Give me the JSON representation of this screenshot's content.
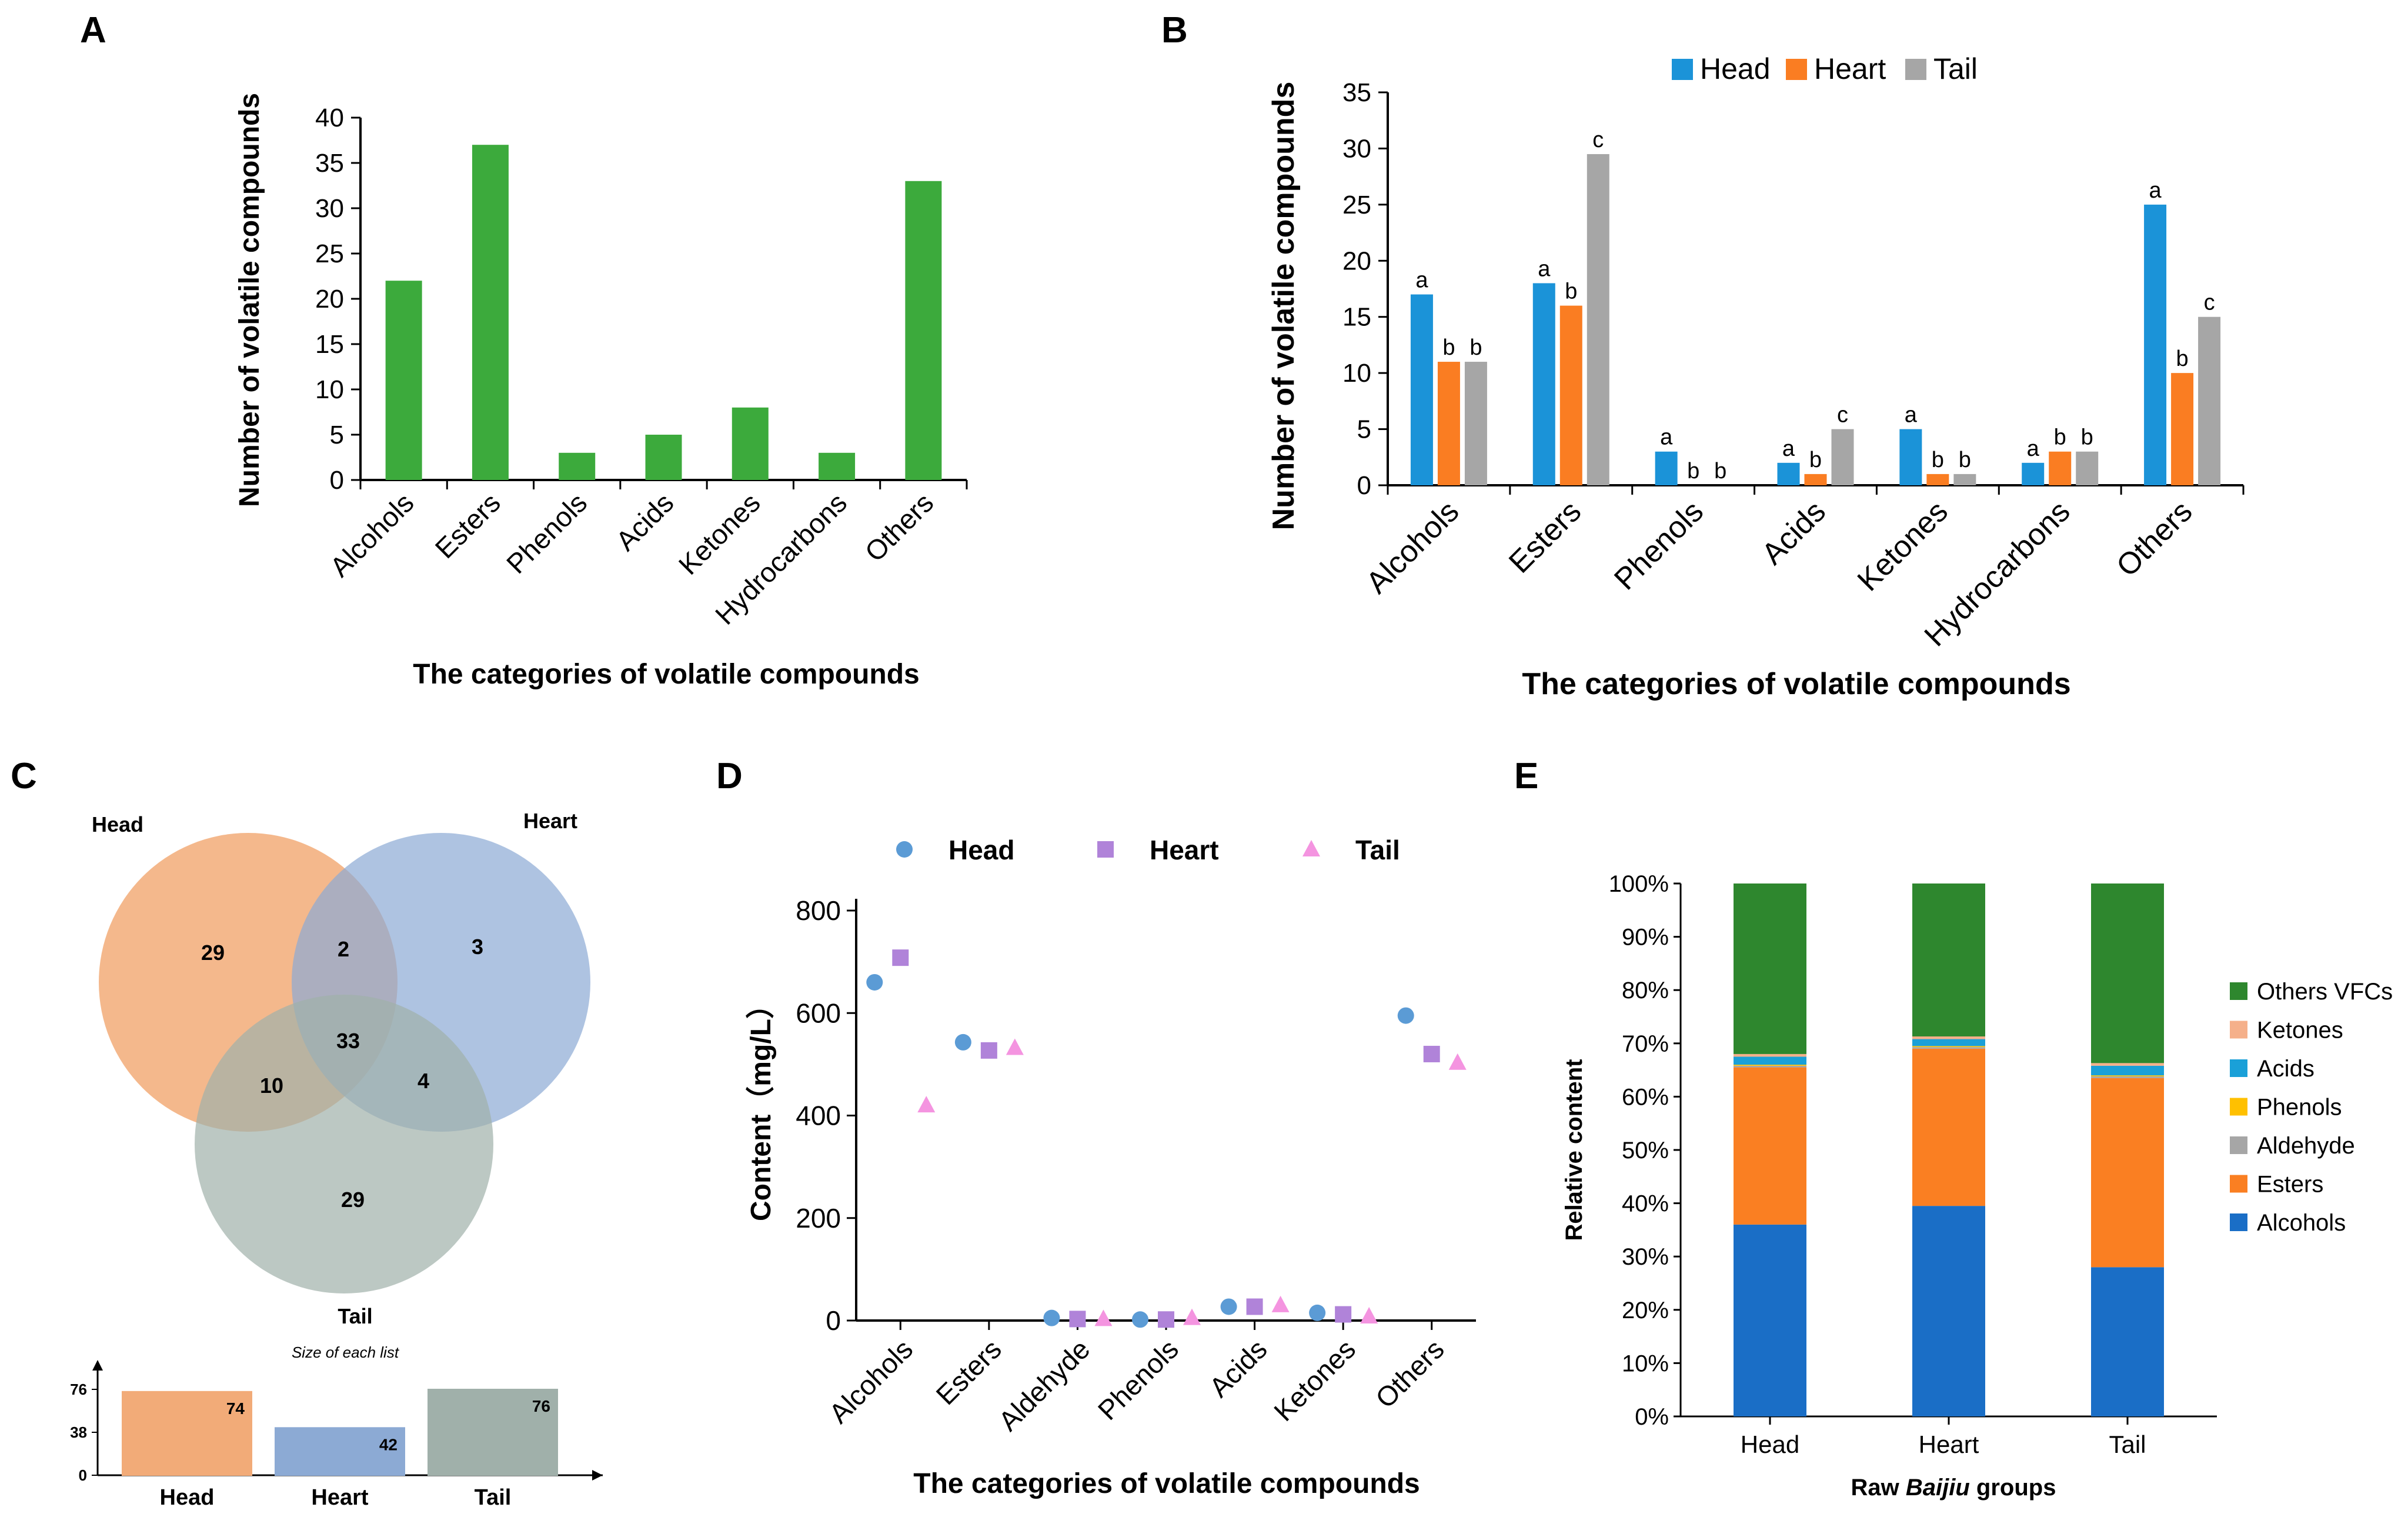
{
  "colors": {
    "green": "#3caa3c",
    "head": "#1b93d8",
    "heart": "#fa7d22",
    "tail": "#a6a6a6",
    "venn_head": "#f2ab78",
    "venn_heart": "#8caad4",
    "venn_tail": "#a0b0aa",
    "scatter_head": "#5b9bd5",
    "scatter_heart": "#b083d9",
    "scatter_tail": "#f494e0",
    "alcohols": "#1a6ec6",
    "esters": "#fa7f22",
    "aldehyde": "#a6a6a6",
    "phenols": "#ffc000",
    "acids": "#1aa0d8",
    "ketones": "#f5b08a",
    "others": "#2e872e"
  },
  "chart_data": [
    {
      "panel": "A",
      "type": "bar",
      "categories": [
        "Alcohols",
        "Esters",
        "Phenols",
        "Acids",
        "Ketones",
        "Hydrocarbons",
        "Others"
      ],
      "values": [
        22,
        37,
        3,
        5,
        8,
        3,
        33
      ],
      "xlabel": "The categories of volatile compounds",
      "ylabel": "Number of volatile compounds",
      "ylim": [
        0,
        40
      ],
      "yticks": [
        "0",
        "5",
        "10",
        "15",
        "20",
        "25",
        "30",
        "35",
        "40"
      ]
    },
    {
      "panel": "B",
      "type": "bar",
      "categories": [
        "Alcohols",
        "Esters",
        "Phenols",
        "Acids",
        "Ketones",
        "Hydrocarbons",
        "Others"
      ],
      "series": [
        {
          "name": "Head",
          "values": [
            17,
            18,
            3,
            2,
            5,
            2,
            25
          ],
          "letters": [
            "a",
            "a",
            "a",
            "a",
            "a",
            "a",
            "a"
          ]
        },
        {
          "name": "Heart",
          "values": [
            11,
            16,
            0,
            1,
            1,
            3,
            10
          ],
          "letters": [
            "b",
            "b",
            "b",
            "b",
            "b",
            "b",
            "b"
          ]
        },
        {
          "name": "Tail",
          "values": [
            11,
            29.5,
            0,
            5,
            1,
            3,
            15
          ],
          "letters": [
            "b",
            "c",
            "b",
            "c",
            "b",
            "b",
            "c"
          ]
        }
      ],
      "xlabel": "The categories of volatile compounds",
      "ylabel": "Number of volatile compounds",
      "ylim": [
        0,
        35
      ],
      "yticks": [
        "0",
        "5",
        "10",
        "15",
        "20",
        "25",
        "30",
        "35"
      ]
    },
    {
      "panel": "C",
      "type": "venn",
      "sets": [
        "Head",
        "Heart",
        "Tail"
      ],
      "regions": {
        "head_only": "29",
        "heart_only": "3",
        "tail_only": "29",
        "head_heart": "2",
        "head_tail": "10",
        "heart_tail": "4",
        "all": "33"
      },
      "sizes_title": "Size of each list",
      "sizes": [
        {
          "name": "Head",
          "value": 74,
          "label": "74"
        },
        {
          "name": "Heart",
          "value": 42,
          "label": "42"
        },
        {
          "name": "Tail",
          "value": 76,
          "label": "76"
        }
      ],
      "size_ticks": [
        "0",
        "38",
        "76"
      ]
    },
    {
      "panel": "D",
      "type": "scatter",
      "categories": [
        "Alcohols",
        "Esters",
        "Aldehyde",
        "Phenols",
        "Acids",
        "Ketones",
        "Others"
      ],
      "series": [
        {
          "name": "Head",
          "values": [
            660,
            543,
            5,
            2,
            27,
            15,
            595
          ]
        },
        {
          "name": "Heart",
          "values": [
            708,
            527,
            3,
            2,
            27,
            12,
            520
          ]
        },
        {
          "name": "Tail",
          "values": [
            420,
            532,
            3,
            5,
            30,
            8,
            503
          ]
        }
      ],
      "xlabel": "The categories of volatile compounds",
      "ylabel": "Content（mg/L）",
      "ylim": [
        0,
        800
      ],
      "yticks": [
        "0",
        "200",
        "400",
        "600",
        "800"
      ]
    },
    {
      "panel": "E",
      "type": "bar",
      "stacked": true,
      "categories": [
        "Head",
        "Heart",
        "Tail"
      ],
      "series": [
        {
          "name": "Alcohols",
          "values": [
            36,
            39.5,
            28
          ]
        },
        {
          "name": "Esters",
          "values": [
            29.5,
            29.5,
            35.5
          ]
        },
        {
          "name": "Aldehyde",
          "values": [
            0.3,
            0.3,
            0.3
          ]
        },
        {
          "name": "Phenols",
          "values": [
            0.2,
            0.2,
            0.2
          ]
        },
        {
          "name": "Acids",
          "values": [
            1.5,
            1.3,
            1.8
          ]
        },
        {
          "name": "Ketones",
          "values": [
            0.5,
            0.5,
            0.5
          ]
        },
        {
          "name": "Others VFCs",
          "values": [
            32,
            28.7,
            33.7
          ]
        }
      ],
      "legend_order": [
        "Others VFCs",
        "Ketones",
        "Acids",
        "Phenols",
        "Aldehyde",
        "Esters",
        "Alcohols"
      ],
      "xlabel_prefix": "Raw ",
      "xlabel_italic": "Baijiu",
      "xlabel_suffix": " groups",
      "ylabel": "Relative content",
      "ylim": [
        0,
        100
      ],
      "yticks": [
        "0%",
        "10%",
        "20%",
        "30%",
        "40%",
        "50%",
        "60%",
        "70%",
        "80%",
        "90%",
        "100%"
      ]
    }
  ]
}
